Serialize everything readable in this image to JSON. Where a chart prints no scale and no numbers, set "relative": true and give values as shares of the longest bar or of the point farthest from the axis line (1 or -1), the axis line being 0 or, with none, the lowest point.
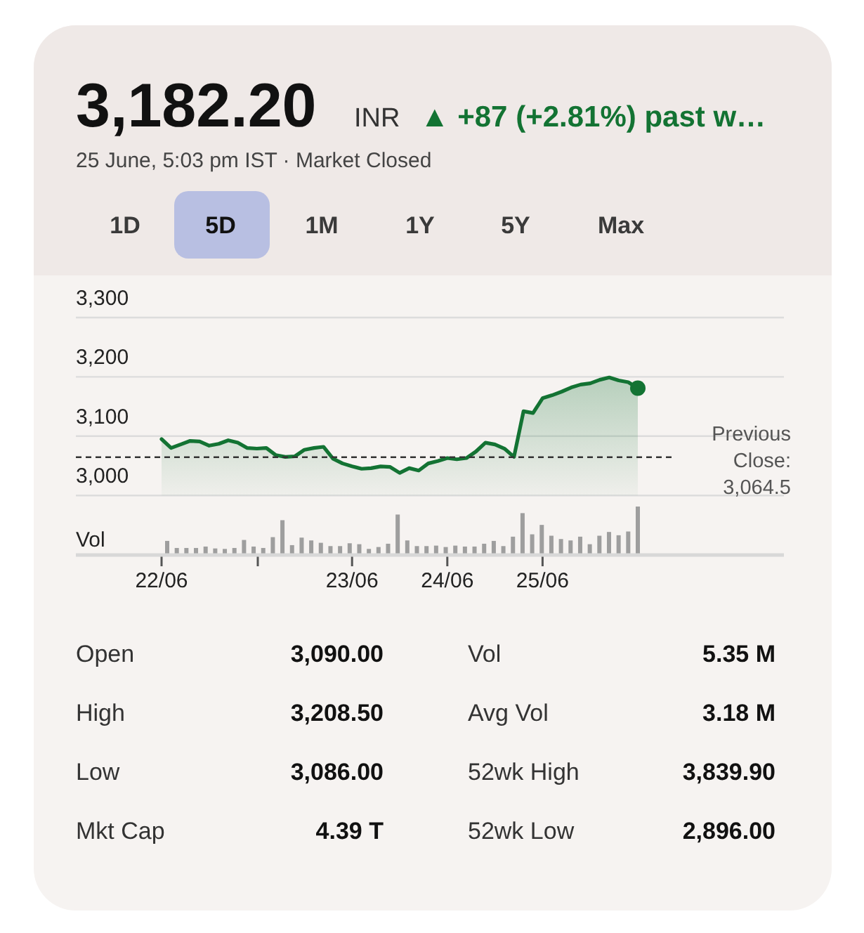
{
  "chart_data": [
    {
      "type": "area",
      "title": "3,182.20",
      "subtitle": "25 June, 5:03 pm IST · Market Closed",
      "annotations": [
        "INR",
        "▲ +87 (+2.81%) past w…",
        "1D",
        "5D",
        "1M",
        "1Y",
        "5Y",
        "Max"
      ],
      "categories": [
        "22/06",
        null,
        null,
        null,
        null,
        null,
        null,
        null,
        null,
        null,
        null,
        null,
        null,
        null,
        null,
        null,
        null,
        null,
        null,
        null,
        "23/06",
        null,
        null,
        null,
        null,
        null,
        null,
        null,
        null,
        null,
        "24/06",
        null,
        null,
        null,
        null,
        null,
        null,
        null,
        null,
        null,
        "25/06",
        null,
        null,
        null,
        null,
        null,
        null,
        null,
        null,
        null,
        null
      ],
      "series": [
        {
          "color": "#137333",
          "values": [
            3095,
            3080,
            3086,
            3092,
            3091,
            3084,
            3087,
            3093,
            3089,
            3080,
            3079,
            3080,
            3068,
            3065,
            3066,
            3077,
            3080,
            3082,
            3062,
            3054,
            3049,
            3045,
            3046,
            3049,
            3048,
            3038,
            3046,
            3042,
            3054,
            3058,
            3063,
            3061,
            3063,
            3074,
            3089,
            3086,
            3079,
            3065,
            3142,
            3139,
            3164,
            3169,
            3175,
            3182,
            3187,
            3189,
            3195,
            3199,
            3194,
            3191,
            3181
          ]
        },
        {
          "type": "scatter",
          "color": "#137333",
          "marker": "circle",
          "values": [
            null,
            null,
            null,
            null,
            null,
            null,
            null,
            null,
            null,
            null,
            null,
            null,
            null,
            null,
            null,
            null,
            null,
            null,
            null,
            null,
            null,
            null,
            null,
            null,
            null,
            null,
            null,
            null,
            null,
            null,
            null,
            null,
            null,
            null,
            null,
            null,
            null,
            null,
            null,
            null,
            null,
            null,
            null,
            null,
            null,
            null,
            null,
            null,
            null,
            null,
            3181
          ]
        }
      ],
      "ylim": [
        3000,
        3300
      ],
      "yticks": [
        {
          "value": 3000,
          "label": "3,000"
        },
        {
          "value": 3100,
          "label": "3,100"
        },
        {
          "value": 3200,
          "label": "3,200"
        },
        {
          "value": 3300,
          "label": "3,300"
        }
      ],
      "grid": "y",
      "ref_lines": [
        {
          "axis": "y",
          "value": 3064.5,
          "label": "Previous Close: 3,064.5",
          "color": "#333333",
          "line_style": "dashed"
        }
      ]
    },
    {
      "type": "bar",
      "ylabel": "Vol",
      "relative": true,
      "color": "#9e9e9e",
      "categories": [
        null,
        null,
        null,
        null,
        null,
        null,
        null,
        null,
        null,
        null,
        null,
        null,
        null,
        null,
        null,
        null,
        null,
        null,
        null,
        null,
        null,
        null,
        null,
        null,
        null,
        null,
        null,
        null,
        null,
        null,
        null,
        null,
        null,
        null,
        null,
        null,
        null,
        null,
        null,
        null,
        null,
        null,
        null,
        null,
        null,
        null,
        null,
        null,
        null,
        null
      ],
      "values": [
        0.27,
        0.12,
        0.12,
        0.12,
        0.15,
        0.11,
        0.1,
        0.12,
        0.29,
        0.15,
        0.12,
        0.35,
        0.71,
        0.18,
        0.34,
        0.28,
        0.23,
        0.16,
        0.16,
        0.22,
        0.2,
        0.1,
        0.14,
        0.21,
        0.83,
        0.28,
        0.16,
        0.16,
        0.17,
        0.14,
        0.17,
        0.15,
        0.15,
        0.21,
        0.27,
        0.16,
        0.36,
        0.86,
        0.41,
        0.61,
        0.38,
        0.31,
        0.28,
        0.36,
        0.2,
        0.38,
        0.46,
        0.39,
        0.47,
        1
      ]
    },
    {
      "type": "other",
      "annotations": [
        "Open",
        "3,090.00",
        "Vol",
        "5.35 M",
        "High",
        "3,208.50",
        "Avg Vol",
        "3.18 M",
        "Low",
        "3,086.00",
        "52wk High",
        "3,839.90",
        "Mkt Cap",
        "4.39 T",
        "52wk Low",
        "2,896.00"
      ]
    }
  ]
}
